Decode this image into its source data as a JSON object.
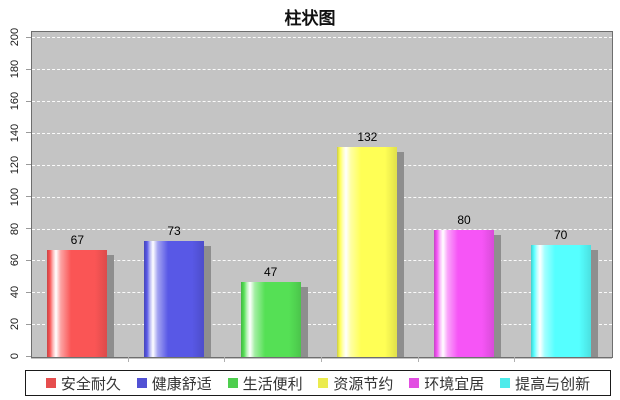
{
  "title": "柱状图",
  "chart_data": {
    "type": "bar",
    "title": "柱状图",
    "categories": [
      "安全耐久",
      "健康舒适",
      "生活便利",
      "资源节约",
      "环境宜居",
      "提高与创新"
    ],
    "values": [
      67,
      73,
      47,
      132,
      80,
      70
    ],
    "bar_colors": [
      "#fa5555",
      "#5858e6",
      "#55e055",
      "#ffff55",
      "#f655f6",
      "#55ffff"
    ],
    "shadow_color": "#8e8e8e",
    "plot_background": "#c4c4c4",
    "grid": "horizontal white dashed",
    "y_ticks": [
      0,
      20,
      40,
      60,
      80,
      100,
      120,
      140,
      160,
      180,
      200
    ],
    "ylim": [
      0,
      204
    ],
    "xlabel": "",
    "ylabel": "",
    "value_labels_shown": true,
    "legend_position": "bottom"
  }
}
